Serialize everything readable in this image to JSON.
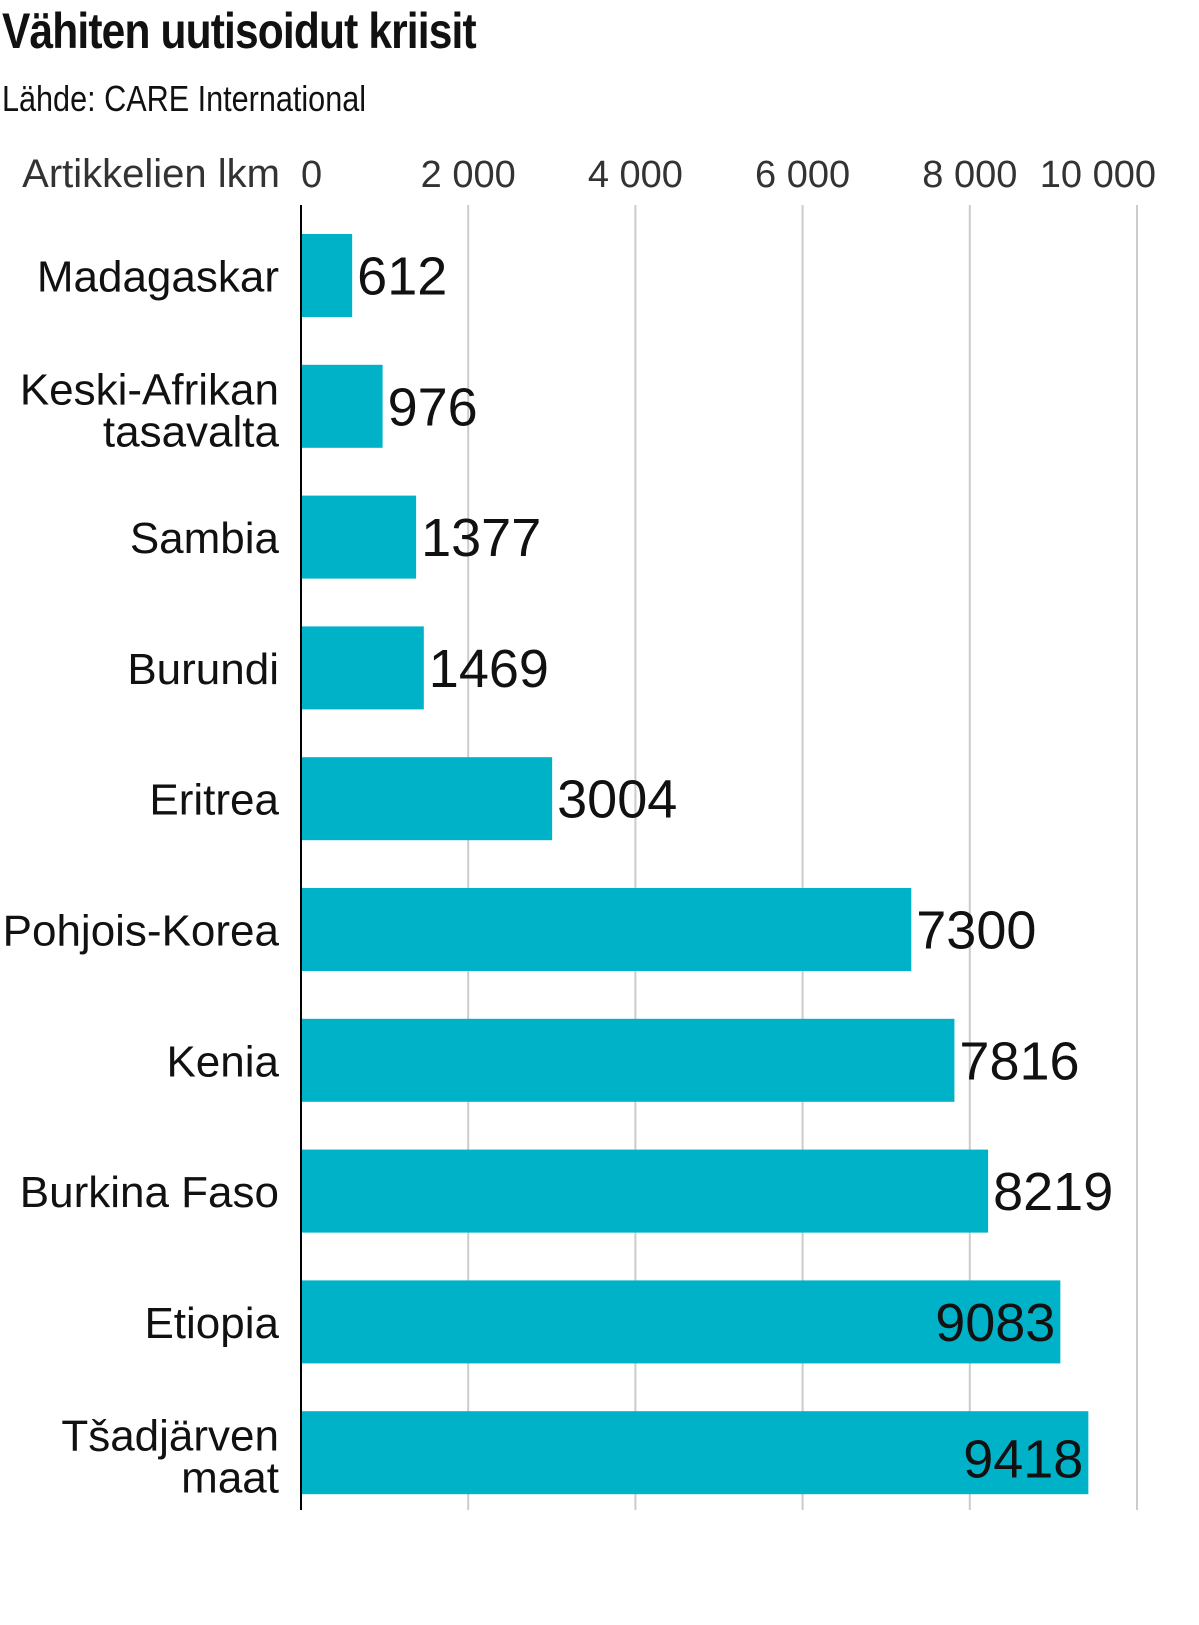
{
  "chart_data": {
    "type": "bar",
    "orientation": "horizontal",
    "title": "Vähiten uutisoidut kriisit",
    "subtitle": "Lähde: CARE International",
    "xlabel": "Artikkelien lkm",
    "xlim": [
      0,
      10000
    ],
    "ticks": [
      0,
      2000,
      4000,
      6000,
      8000,
      10000
    ],
    "tick_labels": [
      "0",
      "2 000",
      "4 000",
      "6 000",
      "8 000",
      "10 000"
    ],
    "grid": true,
    "categories": [
      [
        "Madagaskar"
      ],
      [
        "Keski-Afrikan",
        "tasavalta"
      ],
      [
        "Sambia"
      ],
      [
        "Burundi"
      ],
      [
        "Eritrea"
      ],
      [
        "Pohjois-Korea"
      ],
      [
        "Kenia"
      ],
      [
        "Burkina Faso"
      ],
      [
        "Etiopia"
      ],
      [
        "Tšadjärven",
        "maat"
      ]
    ],
    "values": [
      612,
      976,
      1377,
      1469,
      3004,
      7300,
      7816,
      8219,
      9083,
      9418
    ],
    "value_labels": [
      "612",
      "976",
      "1377",
      "1469",
      "3004",
      "7300",
      "7816",
      "8219",
      "9083",
      "9418"
    ],
    "bar_color": "#00b2c8",
    "grid_color": "#cccccc",
    "axis_color": "#000000"
  }
}
